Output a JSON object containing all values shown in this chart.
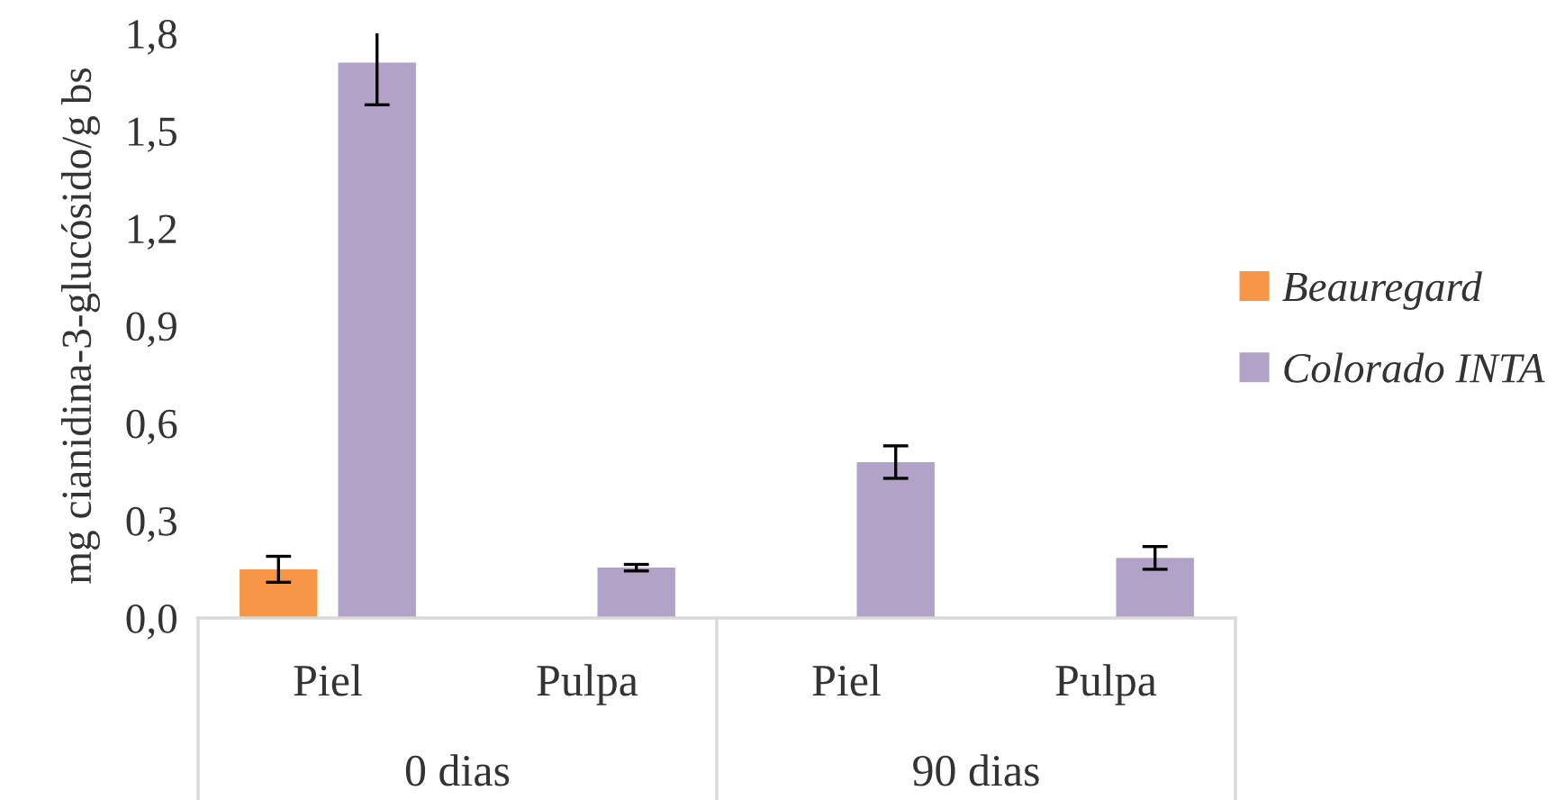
{
  "chart_data": {
    "type": "bar",
    "ylabel": "mg cianidina-3-glucósido/g bs",
    "categories": [
      "Piel",
      "Pulpa",
      "Piel",
      "Pulpa"
    ],
    "annotations": [
      "0 dias",
      "90 dias"
    ],
    "series": [
      {
        "name": "Beauregard",
        "color": "#f79646",
        "values": [
          0.15,
          null,
          null,
          null
        ],
        "errors": [
          0.04,
          null,
          null,
          null
        ]
      },
      {
        "name": "Colorado INTA",
        "color": "#b3a2c7",
        "values": [
          1.71,
          0.155,
          0.48,
          0.185
        ],
        "errors": [
          0.13,
          0.01,
          0.05,
          0.035
        ]
      }
    ],
    "ylim": [
      0,
      1.8
    ],
    "yticks": [
      {
        "value": 0,
        "label": "0,0"
      },
      {
        "value": 0.3,
        "label": "0,3"
      },
      {
        "value": 0.6,
        "label": "0,6"
      },
      {
        "value": 0.9,
        "label": "0,9"
      },
      {
        "value": 1.2,
        "label": "1,2"
      },
      {
        "value": 1.5,
        "label": "1,5"
      },
      {
        "value": 1.8,
        "label": "1,8"
      }
    ],
    "grid": false,
    "legend": "right"
  }
}
